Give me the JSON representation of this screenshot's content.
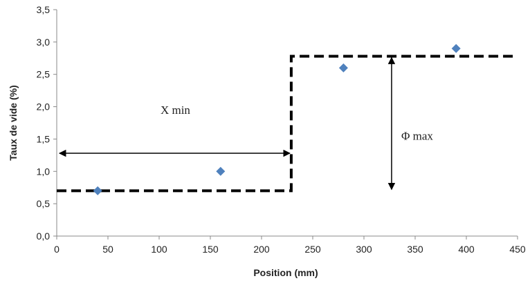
{
  "chart_data": {
    "type": "scatter",
    "title": "",
    "xlabel": "Position (mm)",
    "ylabel": "Taux de vide (%)",
    "xlim": [
      0,
      450
    ],
    "ylim": [
      0,
      3.5
    ],
    "x_ticks": [
      "0",
      "50",
      "100",
      "150",
      "200",
      "250",
      "300",
      "350",
      "400",
      "450"
    ],
    "y_ticks": [
      "0,0",
      "0,5",
      "1,0",
      "1,5",
      "2,0",
      "2,5",
      "3,0",
      "3,5"
    ],
    "grid": false,
    "legend": "none",
    "marker_color": "#4F81BD",
    "series": [
      {
        "x": [
          40,
          160,
          280,
          390
        ],
        "y": [
          0.7,
          1.0,
          2.6,
          2.9
        ]
      }
    ],
    "step_profile": {
      "x": [
        0,
        229,
        229,
        450
      ],
      "y": [
        0.7,
        0.7,
        2.78,
        2.78
      ]
    },
    "annotations": {
      "x_min": {
        "text": "X min",
        "x_from": 0,
        "x_to": 229,
        "y": 1.28
      },
      "phi_max": {
        "text": "Φ max",
        "x": 327,
        "y_from": 0.7,
        "y_to": 2.78
      }
    }
  }
}
